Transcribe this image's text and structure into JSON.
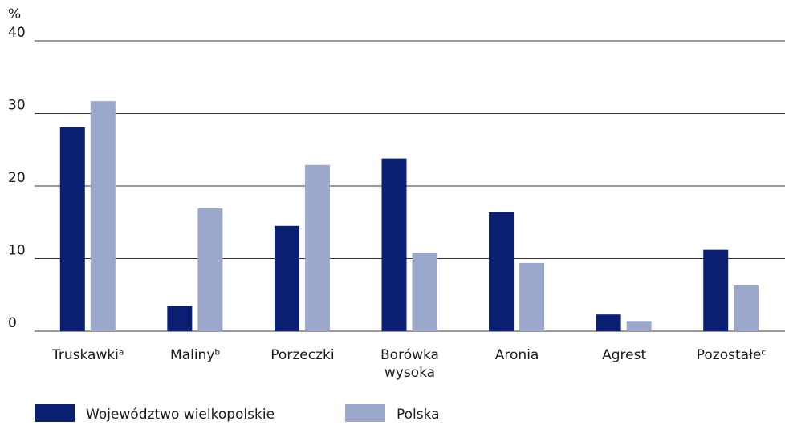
{
  "chart_data": {
    "type": "bar",
    "y_label": "%",
    "categories": [
      "Truskawkiᵃ",
      "Malinyᵇ",
      "Porzeczki",
      "Borówka wysoka",
      "Aronia",
      "Agrest",
      "Pozostałeᶜ"
    ],
    "series": [
      {
        "name": "Województwo wielkopolskie",
        "color": "#0b1f72",
        "values": [
          28.1,
          3.5,
          14.5,
          23.8,
          16.4,
          2.3,
          11.2
        ]
      },
      {
        "name": "Polska",
        "color": "#9ba8cc",
        "values": [
          31.7,
          16.9,
          22.9,
          10.8,
          9.4,
          1.4,
          6.3
        ]
      }
    ],
    "ylim": [
      0,
      40
    ],
    "yticks": [
      0,
      10,
      20,
      30,
      40
    ],
    "grid": true
  }
}
